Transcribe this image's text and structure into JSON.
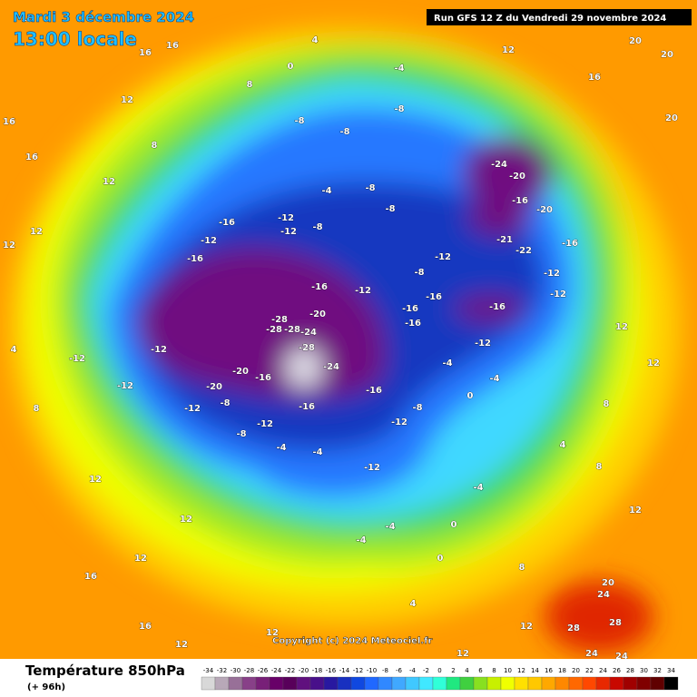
{
  "header": {
    "date": "Mardi 3 décembre 2024",
    "time": "13:00 locale",
    "run": "Run GFS 12 Z du Vendredi 29 novembre 2024"
  },
  "footer": {
    "title": "Température 850hPa",
    "lead": "(+ 96h)",
    "copyright": "Copyright (c) 2024 Meteociel.fr"
  },
  "legend": {
    "values": [
      -34,
      -32,
      -30,
      -28,
      -26,
      -24,
      -22,
      -20,
      -18,
      -16,
      -14,
      -12,
      -10,
      -8,
      -6,
      -4,
      -2,
      0,
      2,
      4,
      6,
      8,
      10,
      12,
      14,
      16,
      18,
      20,
      22,
      24,
      26,
      28,
      30,
      32,
      34
    ],
    "colors": [
      "#d8d8d8",
      "#b8a8b8",
      "#987098",
      "#884088",
      "#782078",
      "#680068",
      "#58005a",
      "#60107e",
      "#48108a",
      "#2818a0",
      "#1830c0",
      "#1048e0",
      "#2068ff",
      "#3088ff",
      "#40a8ff",
      "#40c8ff",
      "#40e8ff",
      "#30ffd8",
      "#20e880",
      "#40d040",
      "#88e020",
      "#c8f000",
      "#f0ff00",
      "#ffe000",
      "#ffc800",
      "#ffa800",
      "#ff8800",
      "#ff6800",
      "#ff4800",
      "#e82800",
      "#c80800",
      "#a00000",
      "#800000",
      "#600000",
      "#000000"
    ]
  },
  "map_labels": [
    -28,
    -28,
    -28,
    -24,
    -28,
    -24,
    -20,
    -16,
    -12,
    -8,
    -12,
    -16,
    -16,
    -16,
    -16,
    -12,
    -24,
    -20,
    -16,
    -20,
    -12,
    -12,
    -16,
    -22,
    -21,
    -12,
    -12,
    -12,
    -12,
    -20,
    -20,
    -16,
    -8,
    -8,
    -12,
    -16,
    -4,
    -4,
    -12,
    -12,
    -8,
    -4,
    -4,
    0,
    -4,
    4,
    8,
    12,
    8,
    12,
    12,
    20,
    20,
    20,
    16,
    12,
    -4,
    -8,
    -8,
    -8,
    0,
    4,
    8,
    16,
    16,
    16,
    16,
    16,
    12,
    8,
    12,
    12,
    12,
    4,
    8,
    12,
    12,
    16,
    12,
    16,
    12,
    12,
    4,
    12,
    12,
    20,
    24,
    28,
    28,
    24,
    24,
    8,
    -16,
    -16,
    -12,
    -12,
    -12,
    -8,
    -8,
    -4,
    -8,
    -16,
    -4,
    -4,
    0,
    0
  ]
}
